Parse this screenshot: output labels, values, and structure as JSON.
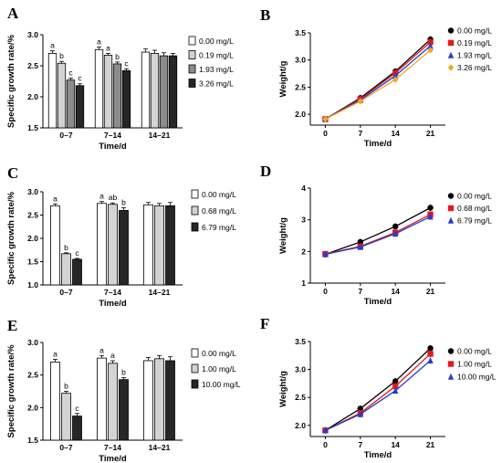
{
  "chart_data": [
    {
      "panel": "A",
      "type": "bar",
      "xlabel": "Time/d",
      "ylabel": "Specific growth rate/%",
      "ylim": [
        1.5,
        3.0
      ],
      "yticks": [
        "1.5",
        "2.0",
        "2.5",
        "3.0"
      ],
      "categories": [
        "0–7",
        "7–14",
        "14–21"
      ],
      "series": [
        {
          "name": "0.00 mg/L",
          "color": "#ffffff",
          "values": [
            2.7,
            2.76,
            2.72
          ],
          "errors": [
            0.04,
            0.04,
            0.05
          ],
          "letters": [
            "a",
            "a",
            ""
          ]
        },
        {
          "name": "0.19 mg/L",
          "color": "#d3d3d3",
          "values": [
            2.54,
            2.67,
            2.7
          ],
          "errors": [
            0.03,
            0.03,
            0.05
          ],
          "letters": [
            "b",
            "a",
            ""
          ]
        },
        {
          "name": "1.93 mg/L",
          "color": "#8c8c8c",
          "values": [
            2.27,
            2.53,
            2.66
          ],
          "errors": [
            0.03,
            0.03,
            0.05
          ],
          "letters": [
            "c",
            "b",
            ""
          ]
        },
        {
          "name": "3.26 mg/L",
          "color": "#262626",
          "values": [
            2.18,
            2.42,
            2.66
          ],
          "errors": [
            0.03,
            0.03,
            0.04
          ],
          "letters": [
            "c",
            "c",
            ""
          ]
        }
      ],
      "legend": "top-right"
    },
    {
      "panel": "B",
      "type": "line",
      "xlabel": "Time/d",
      "ylabel": "Weight/g",
      "ylim": [
        1.8,
        3.5
      ],
      "yticks": [
        "2.0",
        "2.5",
        "3.0",
        "3.5"
      ],
      "x": [
        0,
        7,
        14,
        21
      ],
      "xticks": [
        "0",
        "7",
        "14",
        "21"
      ],
      "series": [
        {
          "name": "0.00 mg/L",
          "color": "#000000",
          "marker": "circle",
          "values": [
            1.91,
            2.3,
            2.79,
            3.38
          ]
        },
        {
          "name": "0.19 mg/L",
          "color": "#e31a1c",
          "marker": "square",
          "values": [
            1.91,
            2.28,
            2.76,
            3.33
          ]
        },
        {
          "name": "1.93 mg/L",
          "color": "#1f3fd0",
          "marker": "triangle",
          "values": [
            1.91,
            2.26,
            2.71,
            3.26
          ]
        },
        {
          "name": "3.26 mg/L",
          "color": "#f5a623",
          "marker": "diamond",
          "values": [
            1.91,
            2.24,
            2.64,
            3.18
          ]
        }
      ],
      "legend": "top-right"
    },
    {
      "panel": "C",
      "type": "bar",
      "xlabel": "Time/d",
      "ylabel": "Specific growth rate/%",
      "ylim": [
        1.0,
        3.0
      ],
      "yticks": [
        "1.0",
        "1.5",
        "2.0",
        "2.5",
        "3.0"
      ],
      "categories": [
        "0–7",
        "7–14",
        "14–21"
      ],
      "series": [
        {
          "name": "0.00 mg/L",
          "color": "#ffffff",
          "values": [
            2.7,
            2.75,
            2.72
          ],
          "errors": [
            0.04,
            0.04,
            0.05
          ],
          "letters": [
            "a",
            "a",
            ""
          ]
        },
        {
          "name": "0.68 mg/L",
          "color": "#d3d3d3",
          "values": [
            1.67,
            2.73,
            2.7
          ],
          "errors": [
            0.02,
            0.03,
            0.05
          ],
          "letters": [
            "b",
            "ab",
            ""
          ]
        },
        {
          "name": "6.79 mg/L",
          "color": "#262626",
          "values": [
            1.55,
            2.6,
            2.7
          ],
          "errors": [
            0.02,
            0.06,
            0.07
          ],
          "letters": [
            "c",
            "b",
            ""
          ]
        }
      ],
      "legend": "top-right"
    },
    {
      "panel": "D",
      "type": "line",
      "xlabel": "Time/d",
      "ylabel": "Weight/g",
      "ylim": [
        1,
        4
      ],
      "yticks": [
        "1",
        "2",
        "3",
        "4"
      ],
      "x": [
        0,
        7,
        14,
        21
      ],
      "xticks": [
        "0",
        "7",
        "14",
        "21"
      ],
      "series": [
        {
          "name": "0.00 mg/L",
          "color": "#000000",
          "marker": "circle",
          "values": [
            1.91,
            2.3,
            2.79,
            3.38
          ]
        },
        {
          "name": "0.68 mg/L",
          "color": "#e31a1c",
          "marker": "square",
          "values": [
            1.92,
            2.16,
            2.6,
            3.17
          ]
        },
        {
          "name": "6.79 mg/L",
          "color": "#1f3fd0",
          "marker": "triangle",
          "values": [
            1.91,
            2.14,
            2.56,
            3.1
          ]
        }
      ],
      "legend": "top-right"
    },
    {
      "panel": "E",
      "type": "bar",
      "xlabel": "Time/d",
      "ylabel": "Specific growth rate/%",
      "ylim": [
        1.5,
        3.0
      ],
      "yticks": [
        "1.5",
        "2.0",
        "2.5",
        "3.0"
      ],
      "categories": [
        "0–7",
        "7–14",
        "14–21"
      ],
      "series": [
        {
          "name": "0.00 mg/L",
          "color": "#ffffff",
          "values": [
            2.7,
            2.76,
            2.72
          ],
          "errors": [
            0.04,
            0.04,
            0.05
          ],
          "letters": [
            "a",
            "a",
            ""
          ]
        },
        {
          "name": "1.00 mg/L",
          "color": "#d3d3d3",
          "values": [
            2.22,
            2.68,
            2.75
          ],
          "errors": [
            0.03,
            0.04,
            0.05
          ],
          "letters": [
            "b",
            "a",
            ""
          ]
        },
        {
          "name": "10.00 mg/L",
          "color": "#262626",
          "values": [
            1.87,
            2.43,
            2.72
          ],
          "errors": [
            0.04,
            0.03,
            0.06
          ],
          "letters": [
            "c",
            "b",
            ""
          ]
        }
      ],
      "legend": "top-right"
    },
    {
      "panel": "F",
      "type": "line",
      "xlabel": "Time/d",
      "ylabel": "Weight/g",
      "ylim": [
        1.8,
        3.5
      ],
      "yticks": [
        "2.0",
        "2.5",
        "3.0",
        "3.5"
      ],
      "x": [
        0,
        7,
        14,
        21
      ],
      "xticks": [
        "0",
        "7",
        "14",
        "21"
      ],
      "series": [
        {
          "name": "0.00 mg/L",
          "color": "#000000",
          "marker": "circle",
          "values": [
            1.91,
            2.3,
            2.79,
            3.38
          ]
        },
        {
          "name": "1.00 mg/L",
          "color": "#e31a1c",
          "marker": "square",
          "values": [
            1.91,
            2.22,
            2.7,
            3.28
          ]
        },
        {
          "name": "10.00 mg/L",
          "color": "#1f3fd0",
          "marker": "triangle",
          "values": [
            1.91,
            2.2,
            2.62,
            3.16
          ]
        }
      ],
      "legend": "top-right"
    }
  ]
}
